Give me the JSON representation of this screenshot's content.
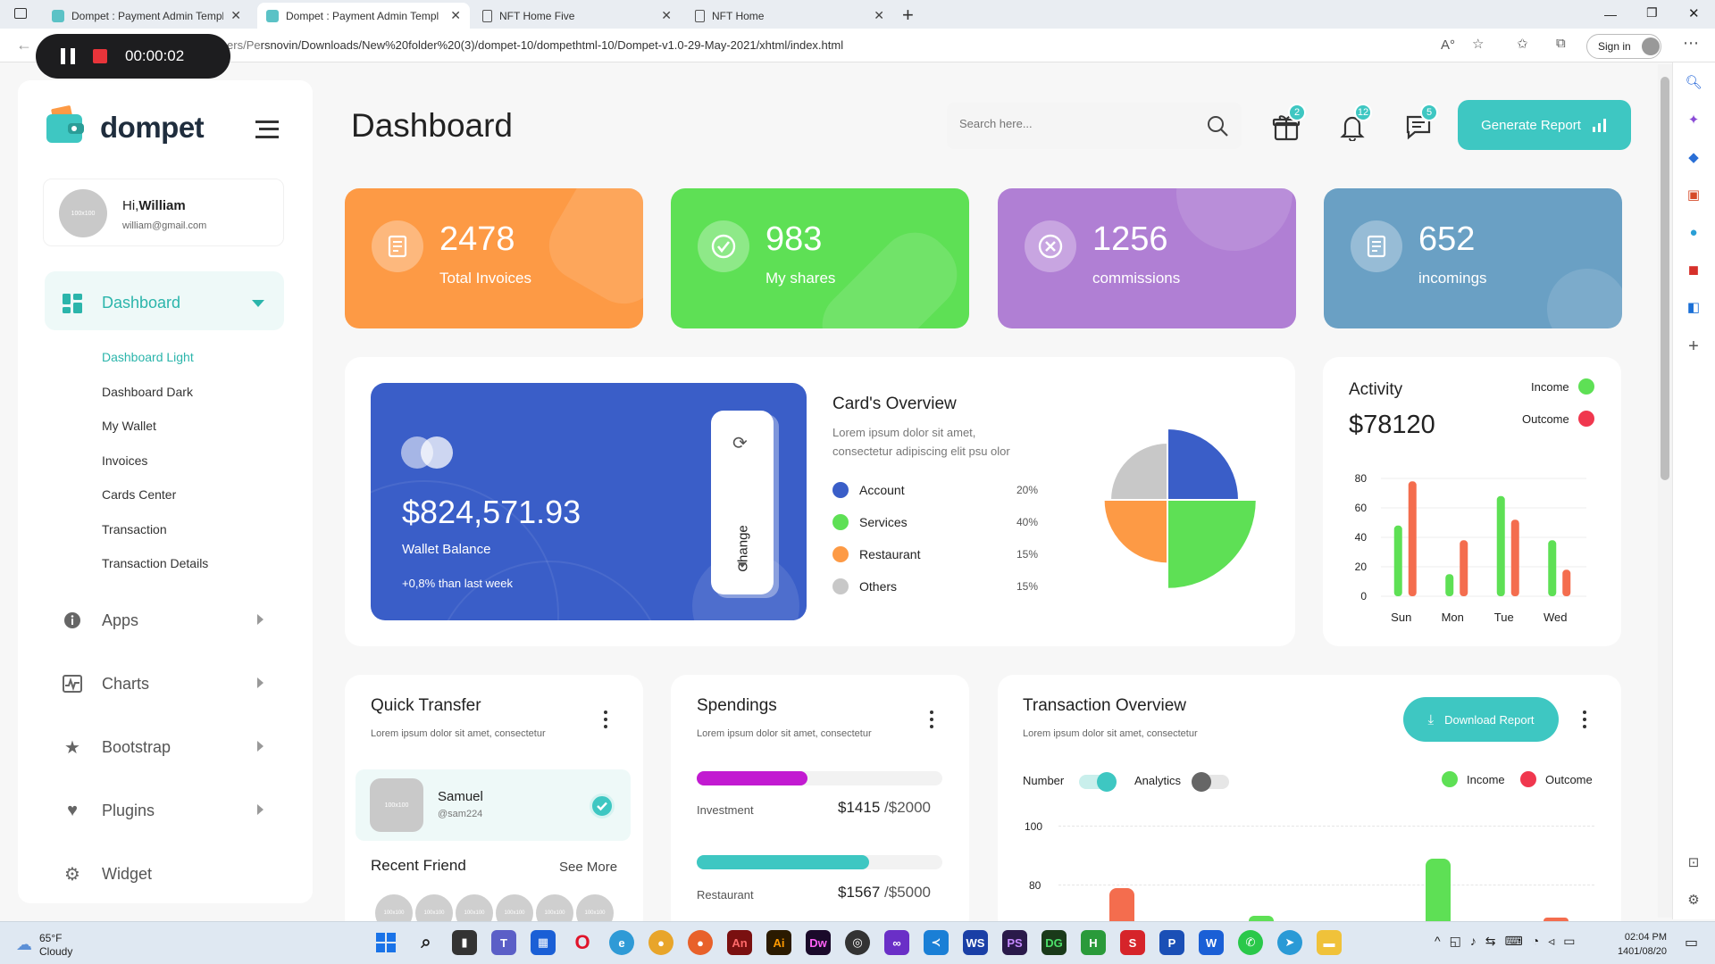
{
  "browser": {
    "tabs": [
      {
        "label": "Dompet : Payment Admin Templ",
        "active": false
      },
      {
        "label": "Dompet : Payment Admin Templ",
        "active": true
      },
      {
        "label": "NFT Home Five",
        "active": false
      },
      {
        "label": "NFT Home",
        "active": false
      }
    ],
    "url_fragment": "rsnovin/Downloads/New%20folder%20(3)/dompet-10/dompethtml-10/Dompet-v1.0-29-May-2021/xhtml/index.html",
    "url_under_recorder": "File | C:/Users/Pe",
    "sign_in": "Sign in",
    "recorder_time": "00:00:02"
  },
  "sidebar": {
    "brand": "dompet",
    "user": {
      "greeting": "Hi,",
      "name": "William",
      "email": "william@gmail.com",
      "avatar_text": "100x100"
    },
    "dashboard_label": "Dashboard",
    "submenu": [
      "Dashboard Light",
      "Dashboard Dark",
      "My Wallet",
      "Invoices",
      "Cards Center",
      "Transaction",
      "Transaction Details"
    ],
    "items": [
      {
        "label": "Apps",
        "icon": "info-icon"
      },
      {
        "label": "Charts",
        "icon": "chart-line-icon"
      },
      {
        "label": "Bootstrap",
        "icon": "star-icon"
      },
      {
        "label": "Plugins",
        "icon": "heart-icon"
      },
      {
        "label": "Widget",
        "icon": "settings-icon"
      }
    ]
  },
  "header": {
    "title": "Dashboard",
    "search_placeholder": "Search here...",
    "badges": {
      "gift": "2",
      "bell": "12",
      "chat": "5"
    },
    "generate_report": "Generate Report"
  },
  "stats": [
    {
      "value": "2478",
      "label": "Total Invoices",
      "color": "#fd9a45"
    },
    {
      "value": "983",
      "label": "My shares",
      "color": "#5ee055"
    },
    {
      "value": "1256",
      "label": "commissions",
      "color": "#b07fd4"
    },
    {
      "value": "652",
      "label": "incomings",
      "color": "#6aa0c4"
    }
  ],
  "wallet": {
    "balance": "$824,571.93",
    "label": "Wallet Balance",
    "change": "+0,8% than last week",
    "change_button": "Change"
  },
  "cards_overview": {
    "title": "Card's Overview",
    "description": "Lorem ipsum dolor sit amet, consectetur adipiscing elit psu olor",
    "items": [
      {
        "label": "Account",
        "pct": "20%",
        "color": "#3a5ec8"
      },
      {
        "label": "Services",
        "pct": "40%",
        "color": "#5ee055"
      },
      {
        "label": "Restaurant",
        "pct": "15%",
        "color": "#fd9a45"
      },
      {
        "label": "Others",
        "pct": "15%",
        "color": "#c8c8c8"
      }
    ]
  },
  "activity": {
    "title": "Activity",
    "value": "$78120",
    "legend": [
      {
        "label": "Income",
        "color": "#5ee055"
      },
      {
        "label": "Outcome",
        "color": "#f0374e"
      }
    ]
  },
  "chart_data": [
    {
      "type": "bar",
      "categories": [
        "Sun",
        "Mon",
        "Tue",
        "Wed"
      ],
      "yticks": [
        "0",
        "20",
        "40",
        "60",
        "80"
      ],
      "ylim": [
        0,
        80
      ],
      "series": [
        {
          "name": "Income",
          "values": [
            48,
            15,
            68,
            38
          ]
        },
        {
          "name": "Outcome",
          "values": [
            78,
            38,
            52,
            18
          ]
        }
      ],
      "legend": "top-right"
    },
    {
      "type": "pie",
      "categories": [
        "Account",
        "Services",
        "Restaurant",
        "Others"
      ],
      "values": [
        20,
        40,
        15,
        15
      ]
    }
  ],
  "quick_transfer": {
    "title": "Quick Transfer",
    "description": "Lorem ipsum dolor sit amet, consectetur",
    "contact": {
      "name": "Samuel",
      "handle": "@sam224",
      "avatar_text": "100x100"
    },
    "recent_title": "Recent Friend",
    "see_more": "See More",
    "friends": [
      "100x100",
      "100x100",
      "100x100",
      "100x100",
      "100x100",
      "100x100"
    ]
  },
  "spendings": {
    "title": "Spendings",
    "description": "Lorem ipsum dolor sit amet, consectetur",
    "items": [
      {
        "label": "Investment",
        "amount": "$1415",
        "total": "/$2000",
        "progress": 0.45,
        "color": "#c21ad1"
      },
      {
        "label": "Restaurant",
        "amount": "$1567",
        "total": "/$5000",
        "progress": 0.7,
        "color": "#3ec7c2"
      }
    ]
  },
  "transaction": {
    "title": "Transaction Overview",
    "description": "Lorem ipsum dolor sit amet, consectetur",
    "download": "Download Report",
    "toggle_number": "Number",
    "toggle_analytics": "Analytics",
    "legend": [
      {
        "label": "Income",
        "color": "#5ee055"
      },
      {
        "label": "Outcome",
        "color": "#f0374e"
      }
    ],
    "yticks": [
      "100",
      "80"
    ]
  },
  "taskbar": {
    "weather_temp": "65°F",
    "weather_text": "Cloudy",
    "time": "02:04 PM",
    "date": "1401/08/20"
  }
}
